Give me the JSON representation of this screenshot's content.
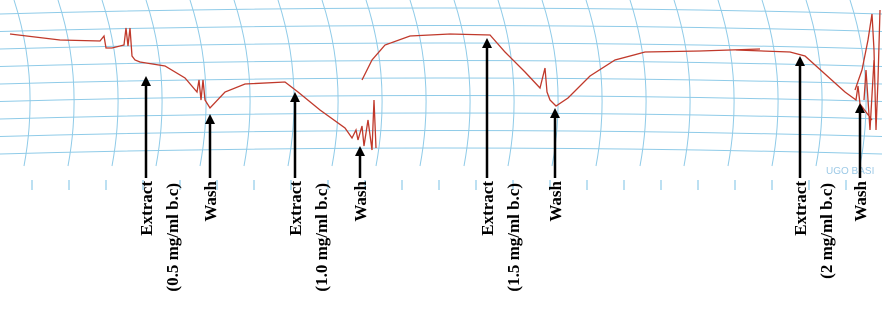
{
  "annotations": [
    {
      "label": "Extract",
      "dose": "(0.5 mg/ml b.c)"
    },
    {
      "label": "Wash"
    },
    {
      "label": "Extract",
      "dose": "(1.0 mg/ml b.c)"
    },
    {
      "label": "Wash"
    },
    {
      "label": "Extract",
      "dose": "(1.5 mg/ml b.c)"
    },
    {
      "label": "Wash"
    },
    {
      "label": "Extract",
      "dose": "(2 mg/ml b.c)"
    },
    {
      "label": "Wash"
    }
  ],
  "watermark": "UGO BASI"
}
